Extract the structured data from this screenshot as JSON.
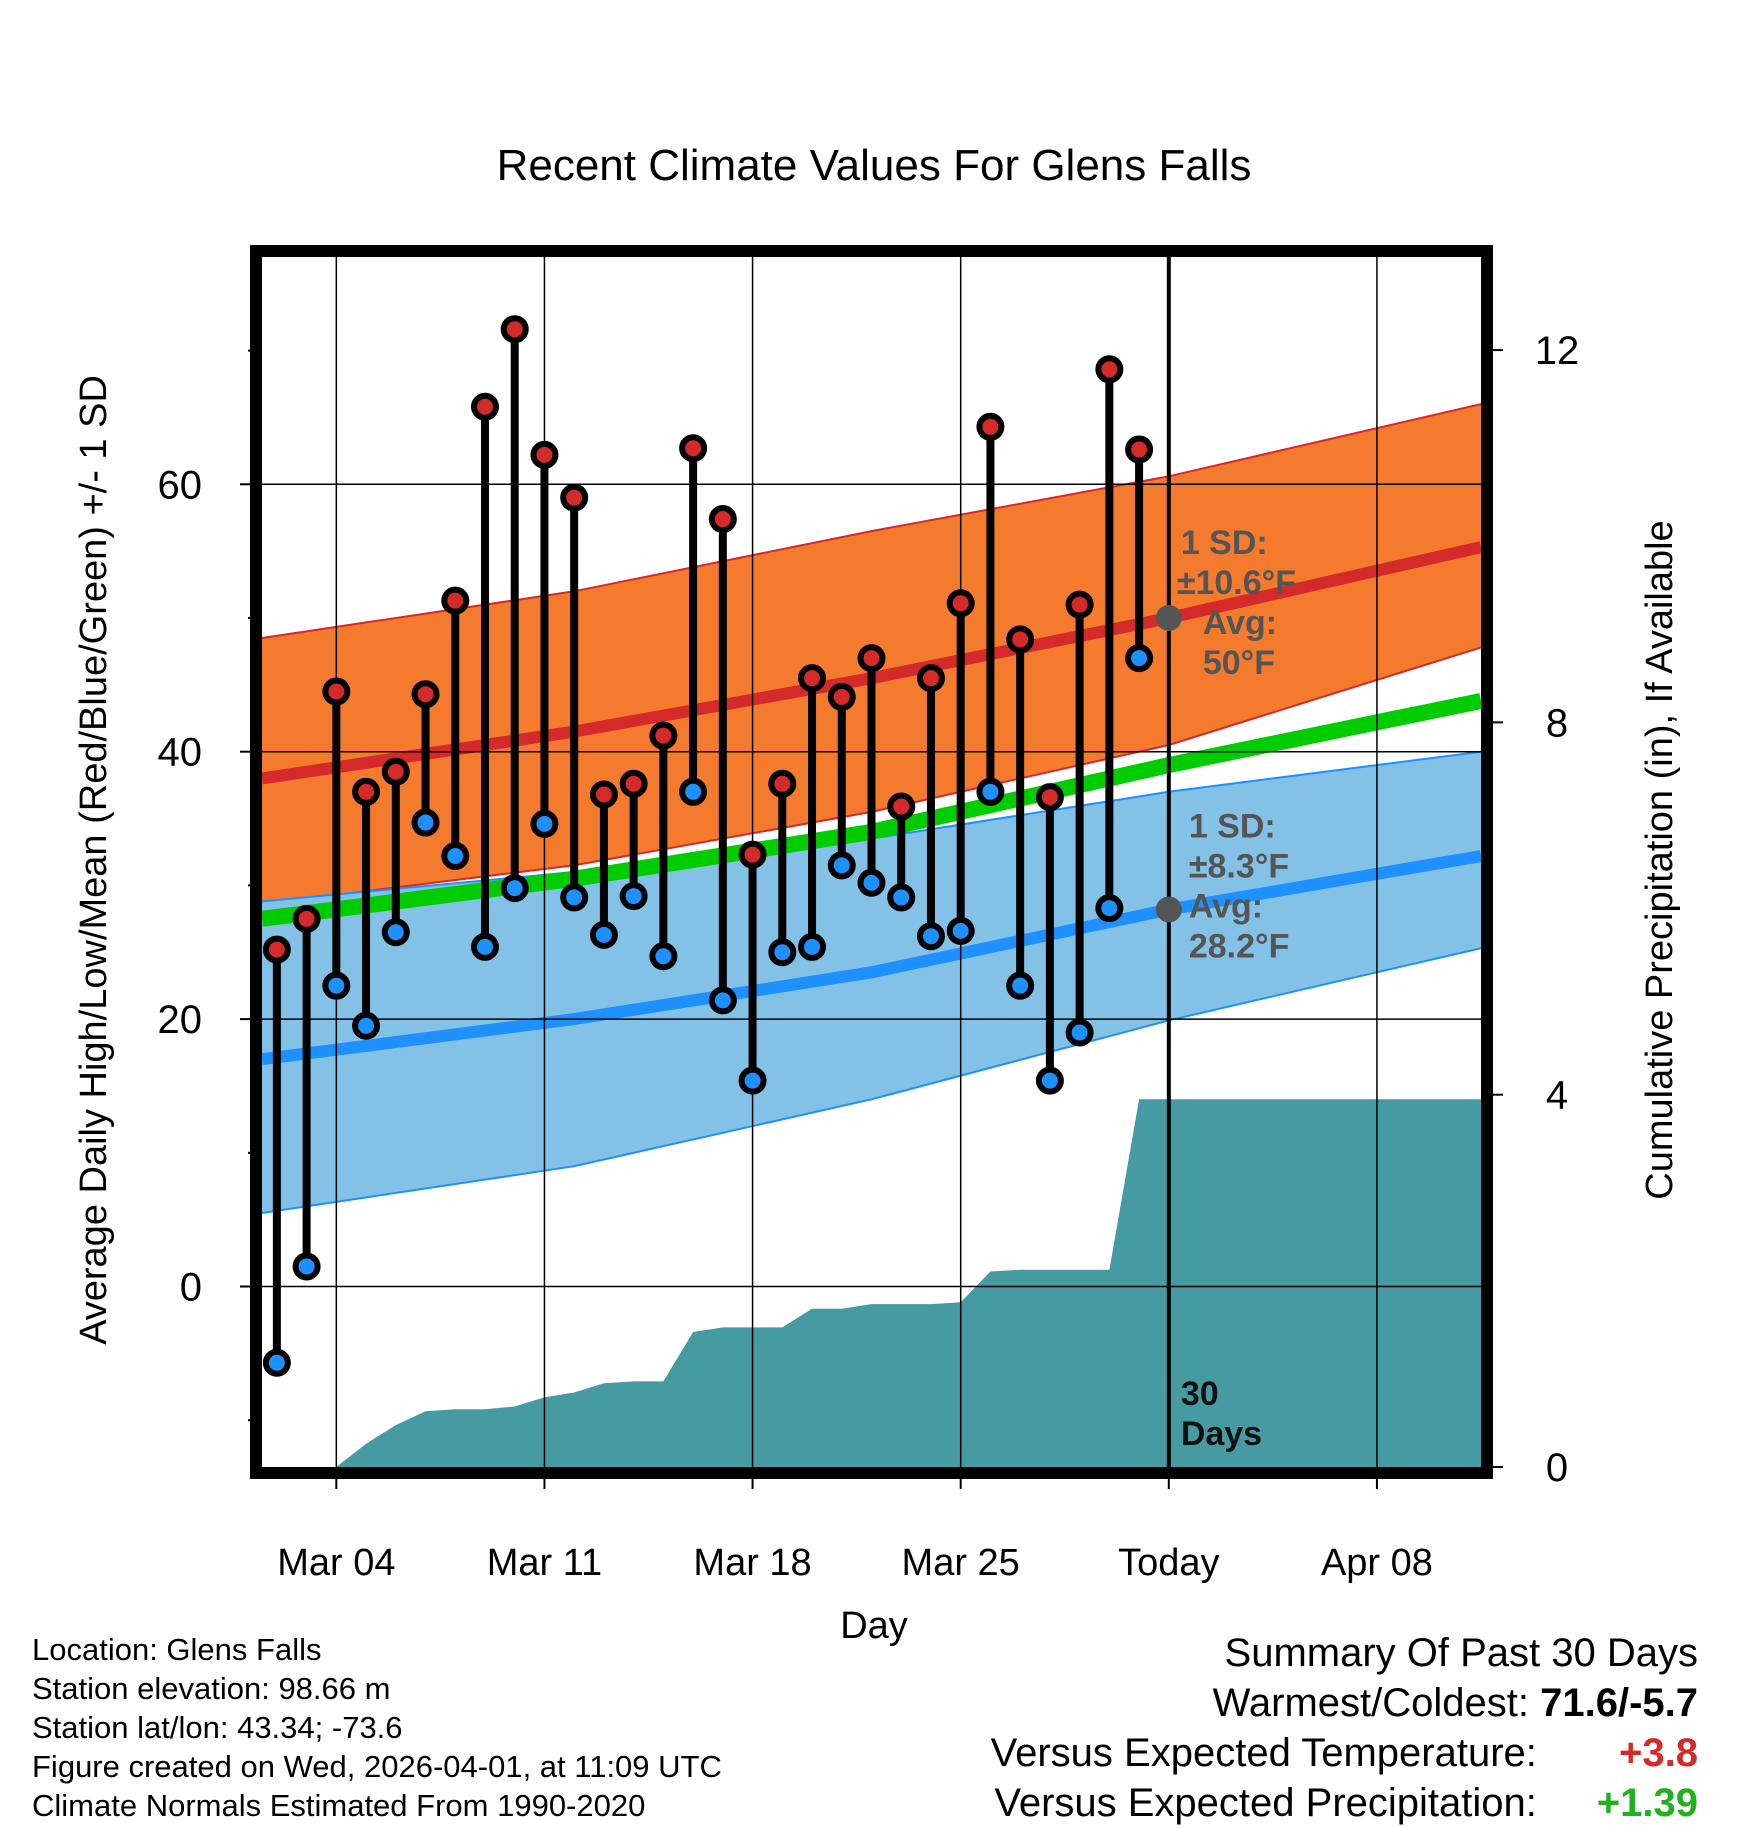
{
  "chart_data": {
    "type": "line",
    "title": "Recent Climate Values For Glens Falls",
    "xlabel": "Day",
    "ylabel_left": "Average Daily High/Low/Mean (Red/Blue/Green) +/- 1 SD",
    "ylabel_right": "Cumulative Precipitation (in), If Available",
    "xlim_days": [
      -30.5,
      10.5
    ],
    "ylim_left": [
      -13.5,
      77
    ],
    "ylim_right": [
      0,
      13
    ],
    "x_ticks": [
      {
        "day": -28,
        "label": "Mar 04"
      },
      {
        "day": -21,
        "label": "Mar 11"
      },
      {
        "day": -14,
        "label": "Mar 18"
      },
      {
        "day": -7,
        "label": "Mar 25"
      },
      {
        "day": 0,
        "label": "Today"
      },
      {
        "day": 7,
        "label": "Apr 08"
      }
    ],
    "y_ticks_left": [
      0,
      20,
      40,
      60
    ],
    "y_ticks_right": [
      0,
      4,
      8,
      12
    ],
    "normal_high": {
      "mean": [
        [
          -30.5,
          38.0
        ],
        [
          -20,
          41.5
        ],
        [
          -10,
          45.5
        ],
        [
          0,
          50.0
        ],
        [
          10.5,
          55.3
        ]
      ],
      "upper": [
        [
          -30.5,
          48.5
        ],
        [
          -20,
          52.0
        ],
        [
          -10,
          56.5
        ],
        [
          0,
          60.6
        ],
        [
          10.5,
          66.0
        ]
      ],
      "lower": [
        [
          -30.5,
          28.6
        ],
        [
          -20,
          31.5
        ],
        [
          -10,
          35.5
        ],
        [
          0,
          40.5
        ],
        [
          10.5,
          47.8
        ]
      ]
    },
    "normal_low": {
      "mean": [
        [
          -30.5,
          17.0
        ],
        [
          -20,
          20.0
        ],
        [
          -10,
          23.5
        ],
        [
          0,
          28.2
        ],
        [
          10.5,
          32.2
        ]
      ],
      "upper": [
        [
          -30.5,
          28.8
        ],
        [
          -20,
          31.0
        ],
        [
          -10,
          33.5
        ],
        [
          0,
          37.0
        ],
        [
          10.5,
          40.0
        ]
      ],
      "lower": [
        [
          -30.5,
          5.5
        ],
        [
          -20,
          9.0
        ],
        [
          -10,
          14.0
        ],
        [
          0,
          19.9
        ],
        [
          10.5,
          25.3
        ]
      ]
    },
    "normal_mean": [
      [
        -30.5,
        27.5
      ],
      [
        -20,
        30.5
      ],
      [
        -10,
        34.0
      ],
      [
        0,
        39.0
      ],
      [
        10.5,
        43.8
      ]
    ],
    "annotations": {
      "high": {
        "day": 0,
        "value": 50,
        "sd_label": "1 SD:",
        "sd_value": "±10.6°F",
        "avg_label": "Avg:",
        "avg_value": "50°F"
      },
      "low": {
        "day": 0,
        "value": 28.2,
        "sd_label": "1 SD:",
        "sd_value": "±8.3°F",
        "avg_label": "Avg:",
        "avg_value": "28.2°F"
      },
      "period": {
        "line1": "30",
        "line2": "Days"
      }
    },
    "observed": [
      {
        "day": -30,
        "high": 25.2,
        "low": -5.7
      },
      {
        "day": -29,
        "high": 27.5,
        "low": 1.5
      },
      {
        "day": -28,
        "high": 44.5,
        "low": 22.5
      },
      {
        "day": -27,
        "high": 37.0,
        "low": 19.5
      },
      {
        "day": -26,
        "high": 38.5,
        "low": 26.5
      },
      {
        "day": -25,
        "high": 44.3,
        "low": 34.7
      },
      {
        "day": -24,
        "high": 51.3,
        "low": 32.2
      },
      {
        "day": -23,
        "high": 65.8,
        "low": 25.4
      },
      {
        "day": -22,
        "high": 71.6,
        "low": 29.8
      },
      {
        "day": -21,
        "high": 62.2,
        "low": 34.6
      },
      {
        "day": -20,
        "high": 59.0,
        "low": 29.1
      },
      {
        "day": -19,
        "high": 36.8,
        "low": 26.3
      },
      {
        "day": -18,
        "high": 37.6,
        "low": 29.2
      },
      {
        "day": -17,
        "high": 41.2,
        "low": 24.7
      },
      {
        "day": -16,
        "high": 62.7,
        "low": 37.0
      },
      {
        "day": -15,
        "high": 57.4,
        "low": 21.4
      },
      {
        "day": -14,
        "high": 32.3,
        "low": 15.4
      },
      {
        "day": -13,
        "high": 37.6,
        "low": 25.0
      },
      {
        "day": -12,
        "high": 45.5,
        "low": 25.4
      },
      {
        "day": -11,
        "high": 44.1,
        "low": 31.5
      },
      {
        "day": -10,
        "high": 47.0,
        "low": 30.2
      },
      {
        "day": -9,
        "high": 35.9,
        "low": 29.1
      },
      {
        "day": -8,
        "high": 45.5,
        "low": 26.2
      },
      {
        "day": -7,
        "high": 51.1,
        "low": 26.6
      },
      {
        "day": -6,
        "high": 64.3,
        "low": 37.0
      },
      {
        "day": -5,
        "high": 48.4,
        "low": 22.5
      },
      {
        "day": -4,
        "high": 36.6,
        "low": 15.4
      },
      {
        "day": -3,
        "high": 51.0,
        "low": 19.0
      },
      {
        "day": -2,
        "high": 68.6,
        "low": 28.3
      },
      {
        "day": -1,
        "high": 62.6,
        "low": 47.0
      }
    ],
    "cumulative_precip": [
      [
        -30.5,
        0
      ],
      [
        -28,
        0
      ],
      [
        -27,
        0.25
      ],
      [
        -26,
        0.45
      ],
      [
        -25,
        0.6
      ],
      [
        -24,
        0.62
      ],
      [
        -23,
        0.62
      ],
      [
        -22,
        0.65
      ],
      [
        -21,
        0.75
      ],
      [
        -20,
        0.8
      ],
      [
        -19,
        0.9
      ],
      [
        -18,
        0.92
      ],
      [
        -17,
        0.92
      ],
      [
        -16,
        1.45
      ],
      [
        -15,
        1.5
      ],
      [
        -14,
        1.5
      ],
      [
        -13,
        1.5
      ],
      [
        -12,
        1.7
      ],
      [
        -11,
        1.7
      ],
      [
        -10,
        1.75
      ],
      [
        -9,
        1.75
      ],
      [
        -8,
        1.75
      ],
      [
        -7,
        1.77
      ],
      [
        -6,
        2.1
      ],
      [
        -5,
        2.12
      ],
      [
        -4,
        2.12
      ],
      [
        -3,
        2.12
      ],
      [
        -2,
        2.12
      ],
      [
        -1,
        3.95
      ],
      [
        0,
        3.95
      ],
      [
        10.5,
        3.95
      ]
    ]
  },
  "footer": {
    "location": "Location: Glens Falls",
    "elevation": "Station elevation: 98.66 m",
    "latlon": "Station lat/lon: 43.34; -73.6",
    "created": "Figure created on Wed, 2026-04-01, at 11:09 UTC",
    "normals": "Climate Normals Estimated From 1990-2020"
  },
  "summary": {
    "title": "Summary Of Past 30 Days",
    "warmest_coldest_label": "Warmest/Coldest:",
    "warmest_coldest_value": "71.6/-5.7",
    "temp_label": "Versus Expected Temperature:",
    "temp_value": "+3.8",
    "precip_label": "Versus Expected Precipitation:",
    "precip_value": "+1.39"
  },
  "colors": {
    "high_band": "#f47b2e",
    "high_line": "#d42a2a",
    "low_band": "#83c1e7",
    "low_line": "#1e90ff",
    "mean_line": "#00cc00",
    "precip": "#469aa1",
    "high_dot": "#d42a2a",
    "low_dot": "#1e90ff",
    "annotation": "#555555",
    "temp_delta": "#d42a2a",
    "precip_delta": "#22b022"
  }
}
